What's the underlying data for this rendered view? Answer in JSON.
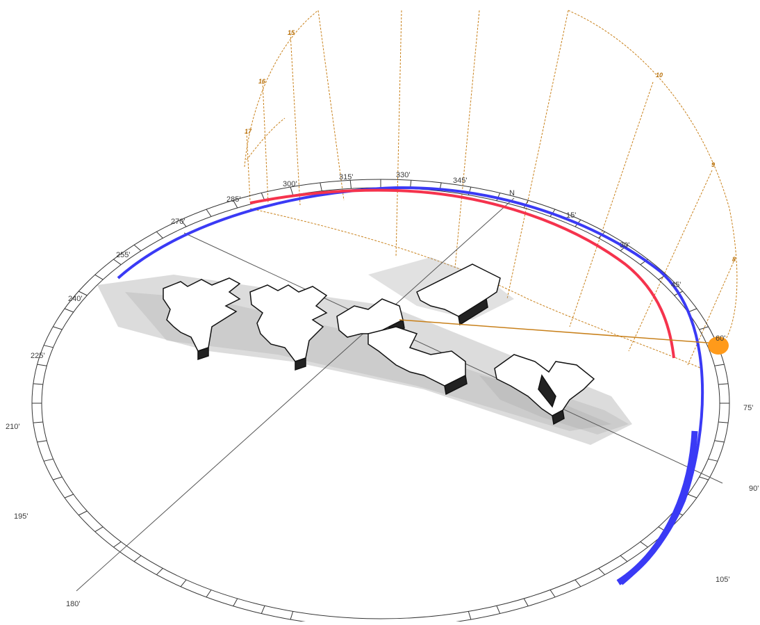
{
  "sunpath": {
    "north_label": "N",
    "compass_labels": [
      "15'",
      "30'",
      "45'",
      "60'",
      "75'",
      "90'",
      "105'",
      "180'",
      "195'",
      "210'",
      "225'",
      "240'",
      "255'",
      "270'",
      "285'",
      "300'",
      "315'",
      "330'",
      "345'"
    ],
    "hour_labels": [
      "8",
      "9",
      "10",
      "15",
      "16",
      "17"
    ],
    "colors": {
      "ring": "#333333",
      "summer_arc": "#3a3af5",
      "winter_arc": "#f5334d",
      "hour_lines": "#c8801a",
      "sun": "#ff9a1a",
      "building_face": "#ffffff",
      "building_edge": "#111111",
      "shadow": "#9a9a9a"
    },
    "sun_icon": "sun-disc-icon"
  }
}
